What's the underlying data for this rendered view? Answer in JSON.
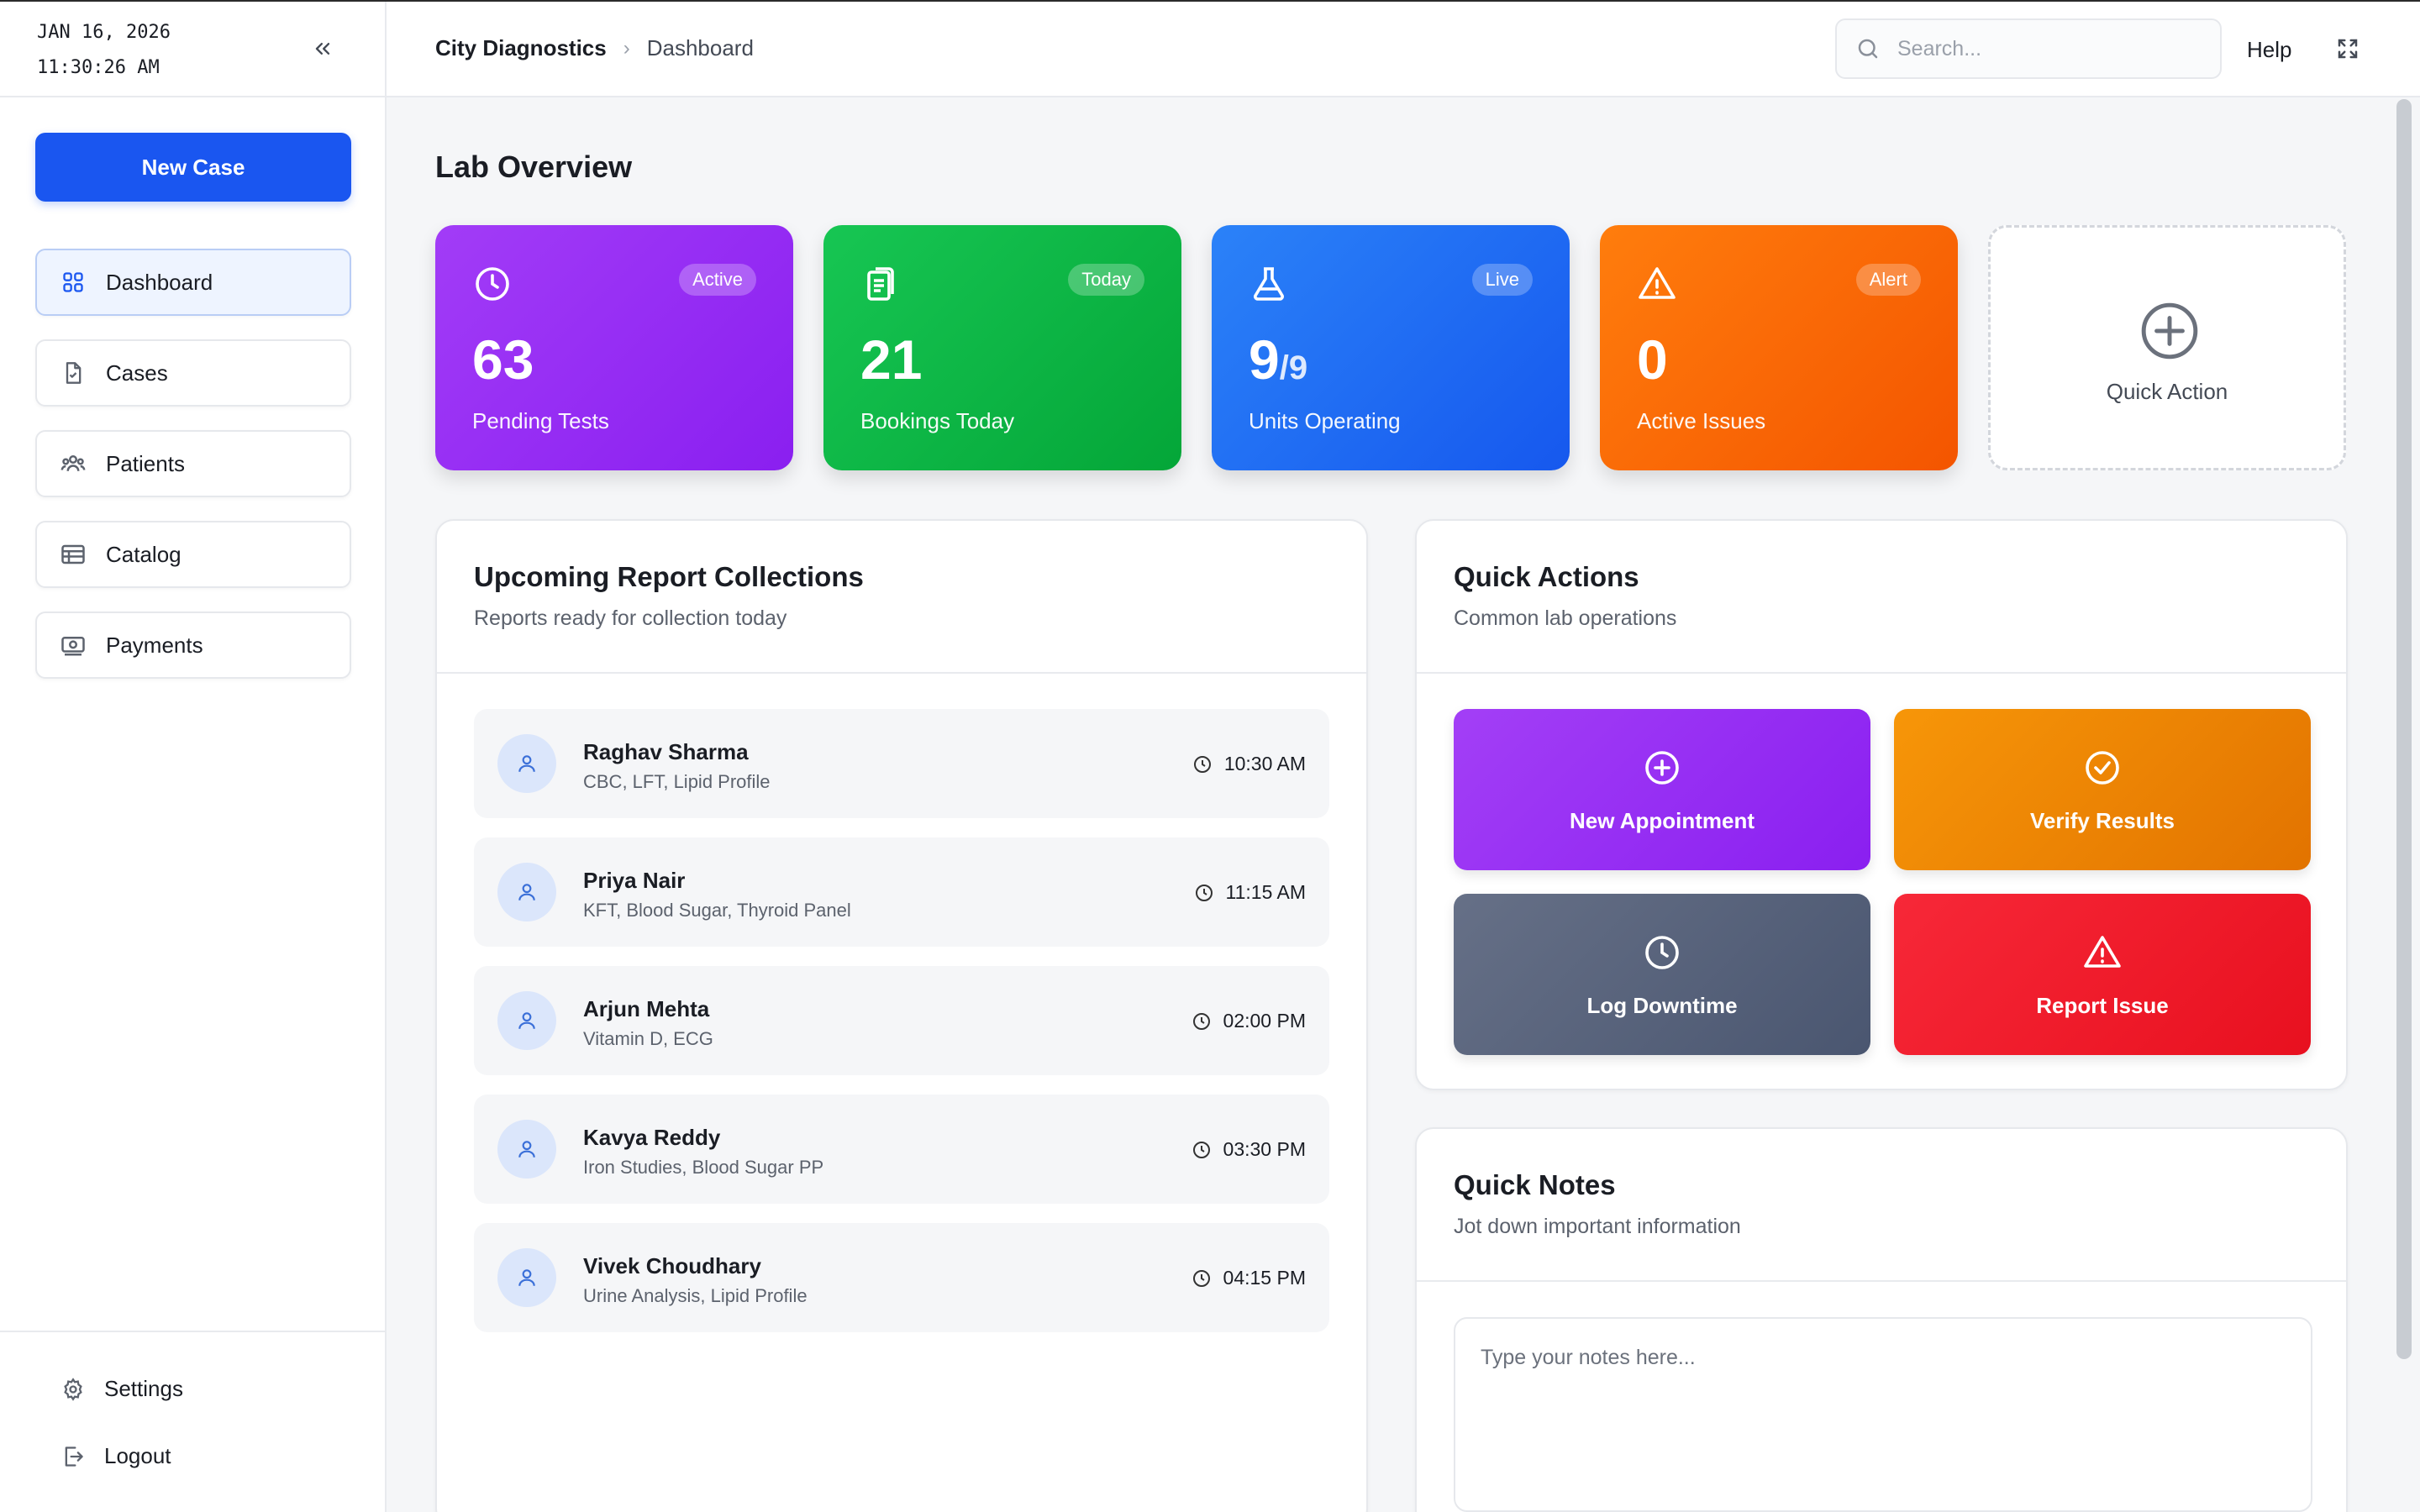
{
  "sidebar": {
    "date": "JAN 16, 2026",
    "time": "11:30:26 AM",
    "new_case_label": "New Case",
    "items": [
      {
        "label": "Dashboard",
        "icon": "grid-icon"
      },
      {
        "label": "Cases",
        "icon": "document-icon"
      },
      {
        "label": "Patients",
        "icon": "users-icon"
      },
      {
        "label": "Catalog",
        "icon": "table-icon"
      },
      {
        "label": "Payments",
        "icon": "money-icon"
      }
    ],
    "settings_label": "Settings",
    "logout_label": "Logout"
  },
  "header": {
    "breadcrumb_root": "City Diagnostics",
    "breadcrumb_current": "Dashboard",
    "search_placeholder": "Search...",
    "help_label": "Help"
  },
  "main": {
    "title": "Lab Overview",
    "stats": [
      {
        "value": "63",
        "label": "Pending Tests",
        "badge": "Active",
        "icon": "clock-icon",
        "color_from": "#9a35f5",
        "color_to": "#8a1ff0"
      },
      {
        "value": "21",
        "label": "Bookings Today",
        "badge": "Today",
        "icon": "clipboard-icon",
        "color_from": "#14c24f",
        "color_to": "#05a83a"
      },
      {
        "value": "9",
        "value_sub": "/9",
        "label": "Units Operating",
        "badge": "Live",
        "icon": "flask-icon",
        "color_from": "#2a7cf7",
        "color_to": "#1a5ff0"
      },
      {
        "value": "0",
        "label": "Active Issues",
        "badge": "Alert",
        "icon": "warning-icon",
        "color_from": "#ff7a0a",
        "color_to": "#f55a00"
      }
    ],
    "quick_action_tile": "Quick Action",
    "collections": {
      "title": "Upcoming Report Collections",
      "subtitle": "Reports ready for collection today",
      "rows": [
        {
          "name": "Raghav Sharma",
          "tests": "CBC, LFT, Lipid Profile",
          "time": "10:30 AM"
        },
        {
          "name": "Priya Nair",
          "tests": "KFT, Blood Sugar, Thyroid Panel",
          "time": "11:15 AM"
        },
        {
          "name": "Arjun Mehta",
          "tests": "Vitamin D, ECG",
          "time": "02:00 PM"
        },
        {
          "name": "Kavya Reddy",
          "tests": "Iron Studies, Blood Sugar PP",
          "time": "03:30 PM"
        },
        {
          "name": "Vivek Choudhary",
          "tests": "Urine Analysis, Lipid Profile",
          "time": "04:15 PM"
        }
      ]
    },
    "quick_actions": {
      "title": "Quick Actions",
      "subtitle": "Common lab operations",
      "actions": [
        {
          "label": "New Appointment",
          "icon": "plus-circle-icon",
          "color": "#9a35f5"
        },
        {
          "label": "Verify Results",
          "icon": "check-circle-icon",
          "color": "#f38a08"
        },
        {
          "label": "Log Downtime",
          "icon": "clock-icon",
          "color": "#56627a"
        },
        {
          "label": "Report Issue",
          "icon": "warning-icon",
          "color": "#ee1a2c"
        }
      ]
    },
    "notes": {
      "title": "Quick Notes",
      "subtitle": "Jot down important information",
      "placeholder": "Type your notes here..."
    }
  }
}
